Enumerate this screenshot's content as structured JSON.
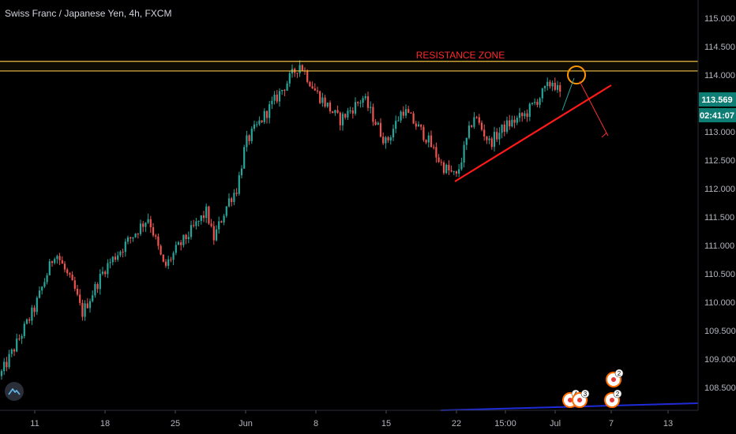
{
  "title": "Swiss Franc / Japanese Yen, 4h, FXCM",
  "annotation": "RESISTANCE ZONE",
  "price_badge": "113.569",
  "countdown_badge": "02:41:07",
  "colors": {
    "background": "#000000",
    "up": "#26a69a",
    "down": "#ef5350",
    "zone": "#f0c040",
    "trendline": "#ff1a1a",
    "annotation_text": "#ff2a2a",
    "projection_up": "#26a69a",
    "projection_down": "#ff3030",
    "indicator_line": "#1f2bd6",
    "badge": "#0e7e74"
  },
  "events": [
    {
      "label": "4"
    },
    {
      "label": "3"
    },
    {
      "label": "2"
    },
    {
      "label": "2"
    }
  ],
  "chart_data": {
    "type": "candlestick",
    "ylim": [
      108.1,
      115.25
    ],
    "y_ticks": [
      "108.500",
      "109.000",
      "109.500",
      "110.000",
      "110.500",
      "111.000",
      "111.500",
      "112.000",
      "112.500",
      "113.000",
      "113.500",
      "114.000",
      "114.500",
      "115.000"
    ],
    "x_ticks": [
      "11",
      "18",
      "25",
      "Jun",
      "8",
      "15",
      "22",
      "15:00",
      "Jul",
      "7",
      "13"
    ],
    "resistance_zone": [
      114.07,
      114.24
    ],
    "trendline": [
      {
        "x": "22",
        "y": 112.1
      },
      {
        "x": "Jul",
        "y": 113.2
      }
    ],
    "projection": {
      "up_to": 114.0,
      "down_to": 112.98
    },
    "current_price": 113.569,
    "close_path": [
      {
        "x": "start",
        "y": 108.7
      },
      {
        "x": "11",
        "y": 109.9
      },
      {
        "x": "",
        "y": 110.9
      },
      {
        "x": "",
        "y": 110.2
      },
      {
        "x": "",
        "y": 109.8
      },
      {
        "x": "18",
        "y": 110.6
      },
      {
        "x": "",
        "y": 111.5
      },
      {
        "x": "",
        "y": 110.6
      },
      {
        "x": "25",
        "y": 110.9
      },
      {
        "x": "",
        "y": 111.6
      },
      {
        "x": "",
        "y": 111.1
      },
      {
        "x": "",
        "y": 111.8
      },
      {
        "x": "",
        "y": 112.0
      },
      {
        "x": "Jun",
        "y": 112.8
      },
      {
        "x": "",
        "y": 113.7
      },
      {
        "x": "",
        "y": 114.2
      },
      {
        "x": "8",
        "y": 113.7
      },
      {
        "x": "",
        "y": 113.2
      },
      {
        "x": "",
        "y": 113.6
      },
      {
        "x": "15",
        "y": 112.8
      },
      {
        "x": "",
        "y": 113.4
      },
      {
        "x": "",
        "y": 112.9
      },
      {
        "x": "",
        "y": 112.4
      },
      {
        "x": "22",
        "y": 112.2
      },
      {
        "x": "",
        "y": 113.3
      },
      {
        "x": "",
        "y": 112.8
      },
      {
        "x": "15:00",
        "y": 113.1
      },
      {
        "x": "",
        "y": 113.3
      },
      {
        "x": "",
        "y": 113.9
      },
      {
        "x": "Jul",
        "y": 113.569
      }
    ]
  }
}
